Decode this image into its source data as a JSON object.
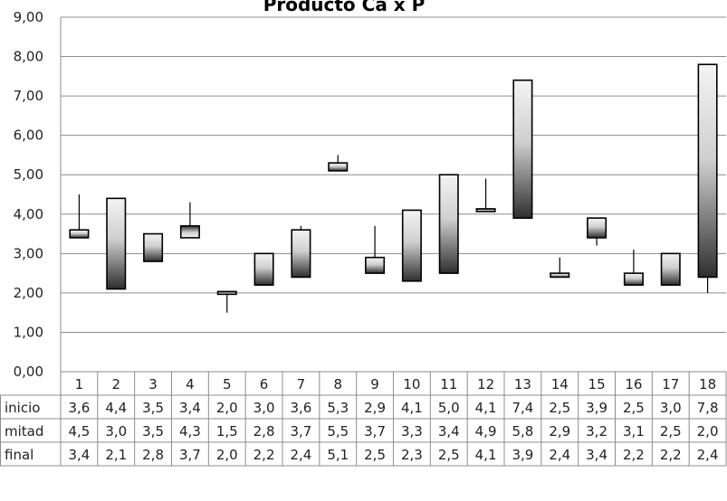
{
  "chart_data": {
    "type": "candlestick",
    "title": "Producto Ca x P",
    "ylim": [
      0,
      9
    ],
    "y_ticks": [
      "0,00",
      "1,00",
      "2,00",
      "3,00",
      "4,00",
      "5,00",
      "6,00",
      "7,00",
      "8,00",
      "9,00"
    ],
    "grid": true,
    "categories": [
      "1",
      "2",
      "3",
      "4",
      "5",
      "6",
      "7",
      "8",
      "9",
      "10",
      "11",
      "12",
      "13",
      "14",
      "15",
      "16",
      "17",
      "18"
    ],
    "series": [
      {
        "name": "inicio",
        "values": [
          3.6,
          4.4,
          3.5,
          3.4,
          2.0,
          3.0,
          3.6,
          5.3,
          2.9,
          4.1,
          5.0,
          4.1,
          7.4,
          2.5,
          3.9,
          2.5,
          3.0,
          7.8
        ],
        "labels": [
          "3,6",
          "4,4",
          "3,5",
          "3,4",
          "2,0",
          "3,0",
          "3,6",
          "5,3",
          "2,9",
          "4,1",
          "5,0",
          "4,1",
          "7,4",
          "2,5",
          "3,9",
          "2,5",
          "3,0",
          "7,8"
        ]
      },
      {
        "name": "mitad",
        "values": [
          4.5,
          3.0,
          3.5,
          4.3,
          1.5,
          2.8,
          3.7,
          5.5,
          3.7,
          3.3,
          3.4,
          4.9,
          5.8,
          2.9,
          3.2,
          3.1,
          2.5,
          2.0
        ],
        "labels": [
          "4,5",
          "3,0",
          "3,5",
          "4,3",
          "1,5",
          "2,8",
          "3,7",
          "5,5",
          "3,7",
          "3,3",
          "3,4",
          "4,9",
          "5,8",
          "2,9",
          "3,2",
          "3,1",
          "2,5",
          "2,0"
        ]
      },
      {
        "name": "final",
        "values": [
          3.4,
          2.1,
          2.8,
          3.7,
          2.0,
          2.2,
          2.4,
          5.1,
          2.5,
          2.3,
          2.5,
          4.1,
          3.9,
          2.4,
          3.4,
          2.2,
          2.2,
          2.4
        ],
        "labels": [
          "3,4",
          "2,1",
          "2,8",
          "3,7",
          "2,0",
          "2,2",
          "2,4",
          "5,1",
          "2,5",
          "2,3",
          "2,5",
          "4,1",
          "3,9",
          "2,4",
          "3,4",
          "2,2",
          "2,2",
          "2,4"
        ]
      }
    ]
  }
}
